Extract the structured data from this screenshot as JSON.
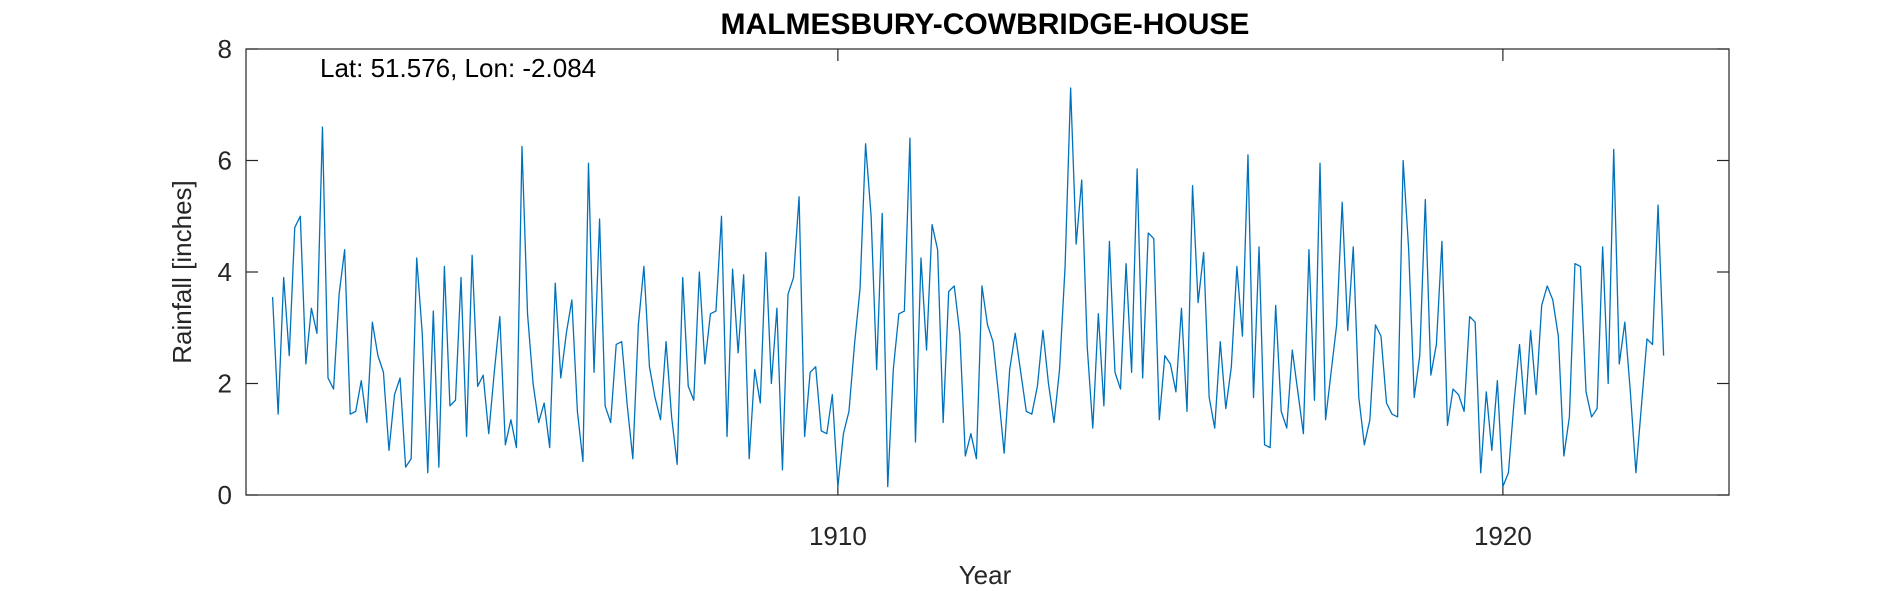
{
  "chart_data": {
    "type": "line",
    "title": "MALMESBURY-COWBRIDGE-HOUSE",
    "annotation": "Lat: 51.576, Lon: -2.084",
    "xlabel": "Year",
    "ylabel": "Rainfall [inches]",
    "xlim": [
      1901.1,
      1923.4
    ],
    "ylim": [
      0,
      8
    ],
    "x_ticks": [
      1910,
      1920
    ],
    "y_ticks": [
      0,
      2,
      4,
      6,
      8
    ],
    "x_start": 1901.5,
    "x_step": 0.0833333,
    "grid": false,
    "series": [
      {
        "color": "#0072BD",
        "values": [
          3.55,
          1.45,
          3.9,
          2.5,
          4.8,
          5.0,
          2.35,
          3.35,
          2.9,
          6.6,
          2.1,
          1.9,
          3.6,
          4.4,
          1.45,
          1.5,
          2.05,
          1.3,
          3.1,
          2.5,
          2.2,
          0.8,
          1.8,
          2.1,
          0.5,
          0.65,
          4.25,
          2.9,
          0.4,
          3.3,
          0.5,
          4.1,
          1.6,
          1.7,
          3.9,
          1.05,
          4.3,
          1.95,
          2.15,
          1.1,
          2.2,
          3.2,
          0.9,
          1.35,
          0.85,
          6.25,
          3.25,
          2.0,
          1.3,
          1.65,
          0.85,
          3.8,
          2.1,
          2.9,
          3.5,
          1.5,
          0.6,
          5.95,
          2.2,
          4.95,
          1.6,
          1.3,
          2.7,
          2.75,
          1.6,
          0.65,
          3.05,
          4.1,
          2.3,
          1.75,
          1.35,
          2.75,
          1.4,
          0.55,
          3.9,
          1.95,
          1.7,
          4.0,
          2.35,
          3.25,
          3.3,
          5.0,
          1.05,
          4.05,
          2.55,
          3.95,
          0.65,
          2.25,
          1.65,
          4.35,
          2.0,
          3.35,
          0.45,
          3.6,
          3.9,
          5.35,
          1.05,
          2.2,
          2.3,
          1.15,
          1.1,
          1.8,
          0.15,
          1.1,
          1.5,
          2.7,
          3.7,
          6.3,
          5.0,
          2.25,
          5.05,
          0.15,
          2.25,
          3.25,
          3.3,
          6.4,
          0.95,
          4.25,
          2.6,
          4.85,
          4.4,
          1.3,
          3.65,
          3.75,
          2.9,
          0.7,
          1.1,
          0.65,
          3.75,
          3.05,
          2.75,
          1.8,
          0.75,
          2.25,
          2.9,
          2.2,
          1.5,
          1.45,
          1.95,
          2.95,
          2.0,
          1.3,
          2.25,
          4.1,
          7.3,
          4.5,
          5.65,
          2.65,
          1.2,
          3.25,
          1.6,
          4.55,
          2.2,
          1.9,
          4.15,
          2.2,
          5.85,
          2.1,
          4.7,
          4.6,
          1.35,
          2.5,
          2.35,
          1.85,
          3.35,
          1.5,
          5.55,
          3.45,
          4.35,
          1.75,
          1.2,
          2.75,
          1.55,
          2.3,
          4.1,
          2.85,
          6.1,
          1.75,
          4.45,
          0.9,
          0.85,
          3.4,
          1.5,
          1.2,
          2.6,
          1.85,
          1.1,
          4.4,
          1.7,
          5.95,
          1.35,
          2.2,
          3.05,
          5.25,
          2.95,
          4.45,
          1.75,
          0.9,
          1.35,
          3.05,
          2.85,
          1.65,
          1.45,
          1.4,
          6.0,
          4.4,
          1.75,
          2.5,
          5.3,
          2.15,
          2.7,
          4.55,
          1.25,
          1.9,
          1.8,
          1.5,
          3.2,
          3.1,
          0.4,
          1.85,
          0.8,
          2.05,
          0.15,
          0.4,
          1.65,
          2.7,
          1.45,
          2.95,
          1.8,
          3.4,
          3.75,
          3.5,
          2.85,
          0.7,
          1.4,
          4.15,
          4.1,
          1.85,
          1.4,
          1.55,
          4.45,
          2.0,
          6.2,
          2.35,
          3.1,
          1.85,
          0.4,
          1.6,
          2.8,
          2.7,
          5.2,
          2.5
        ]
      }
    ]
  }
}
